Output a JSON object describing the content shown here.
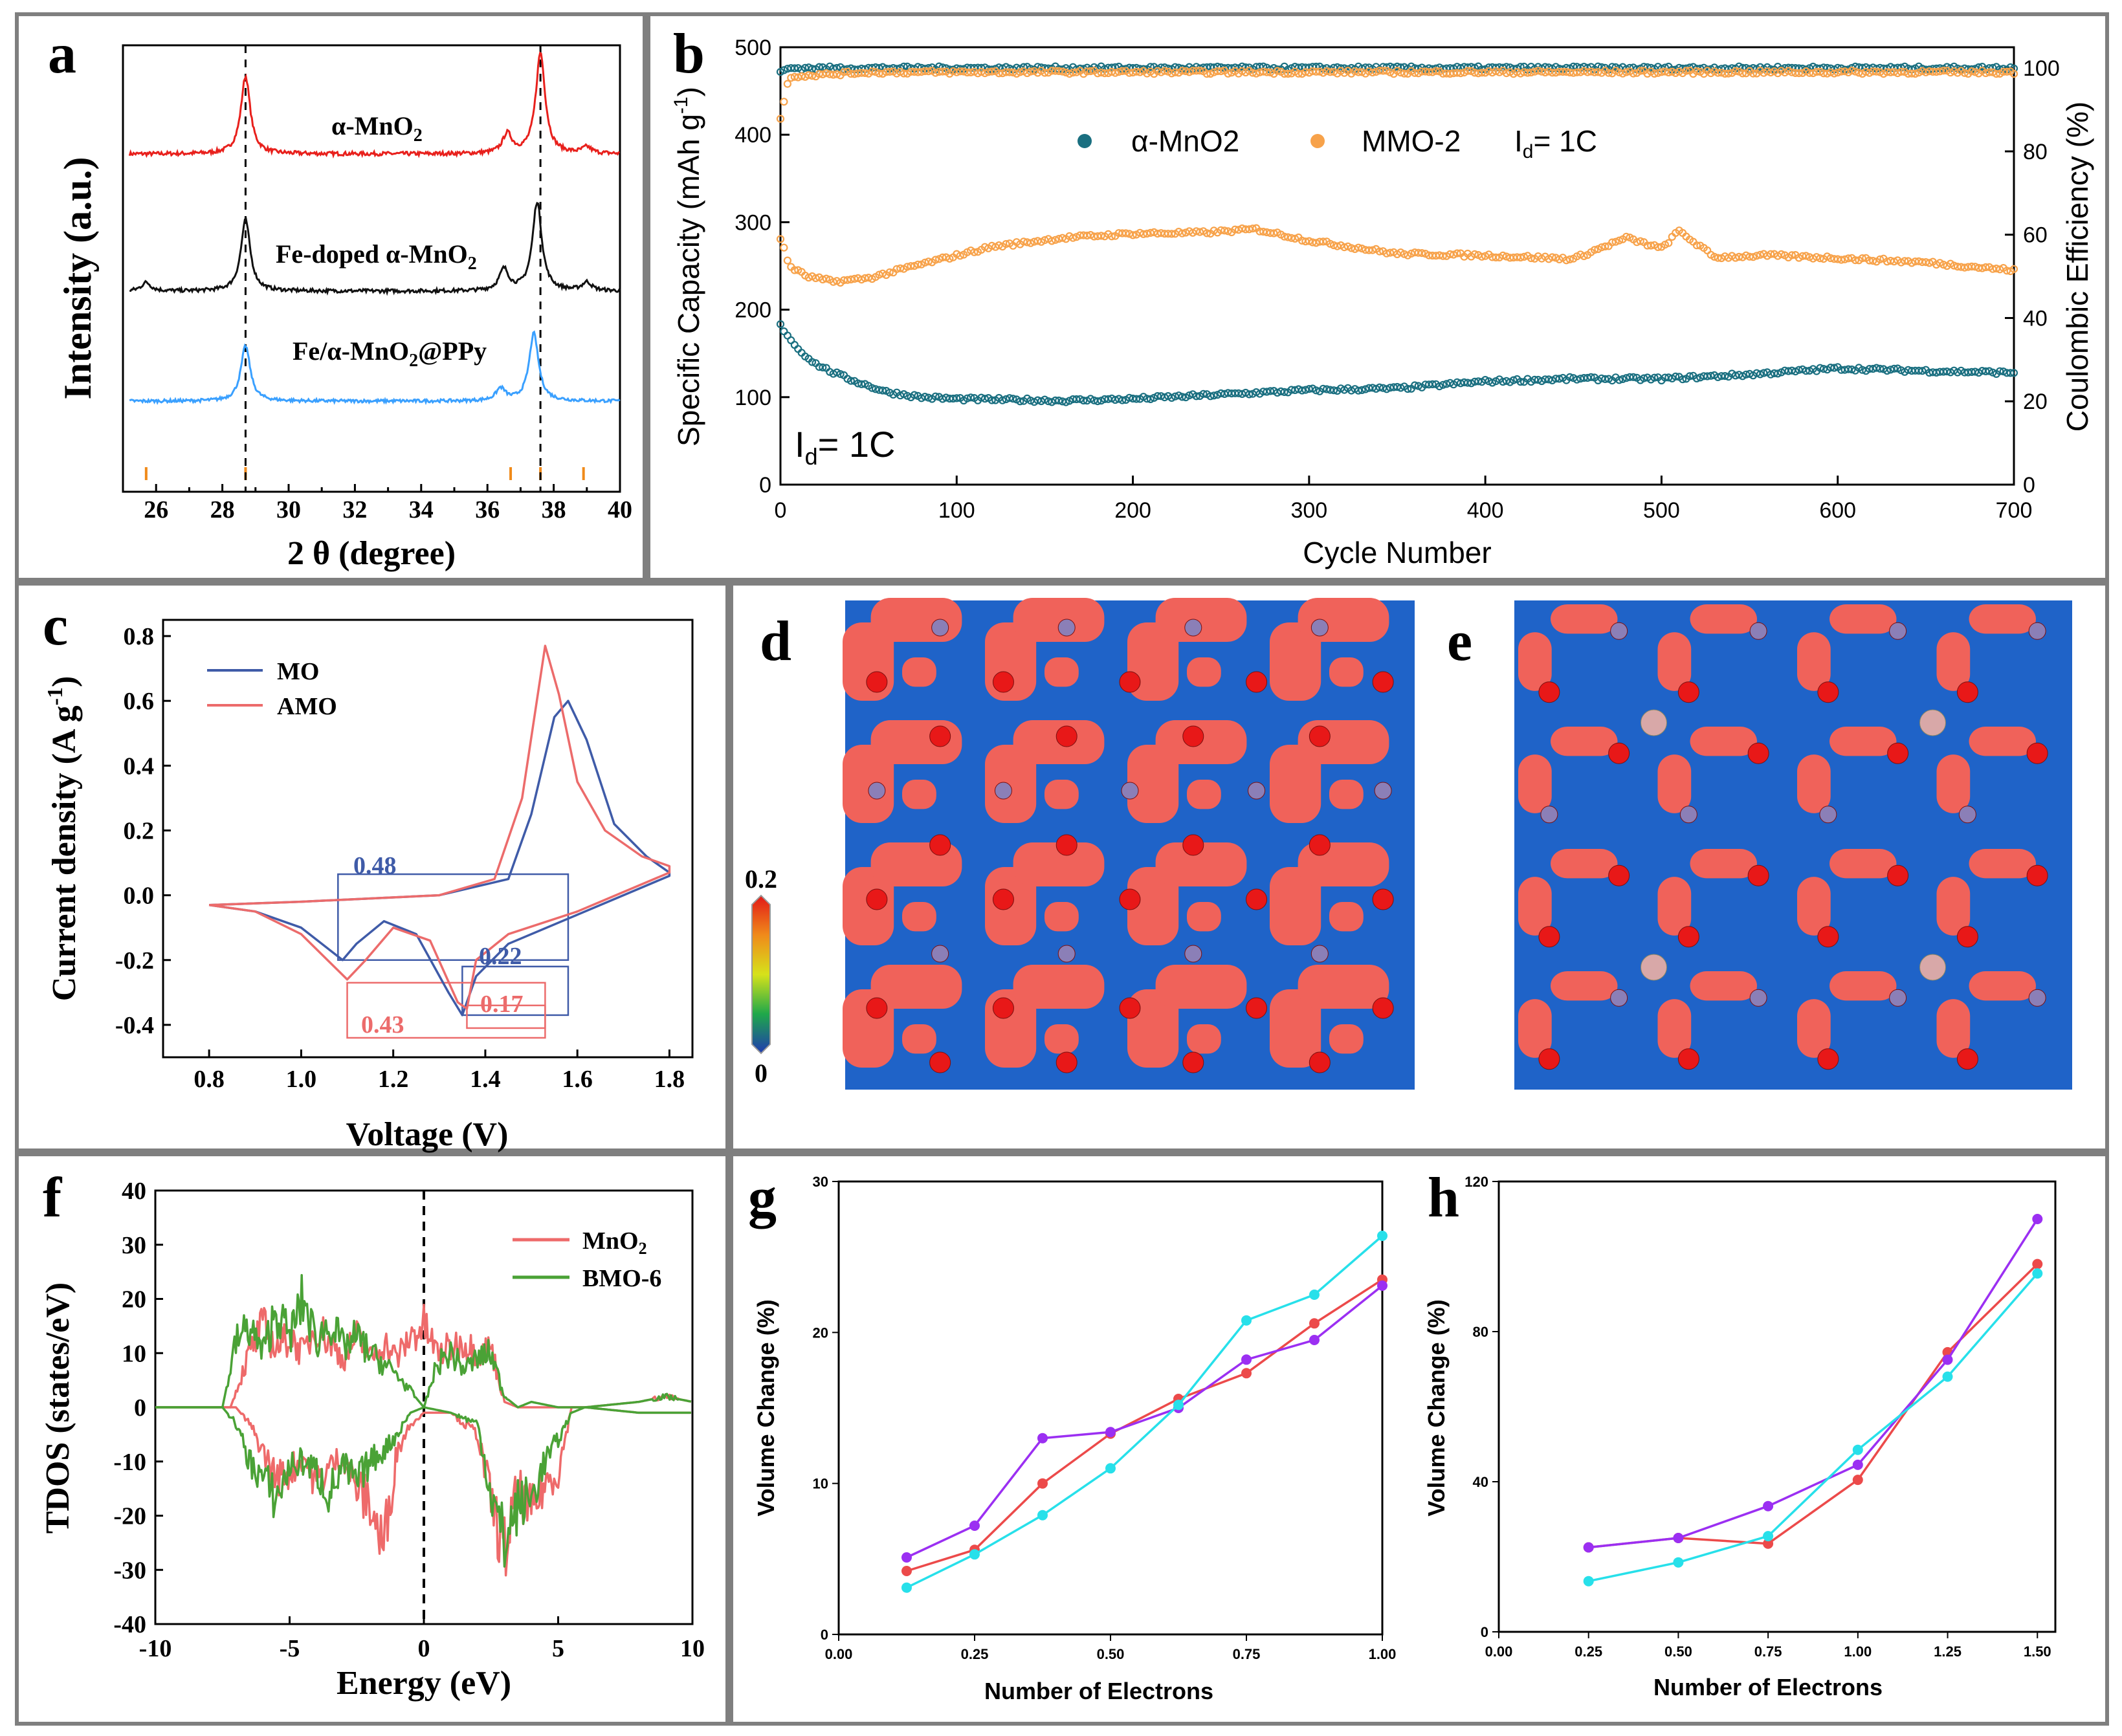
{
  "colors": {
    "red": "#e8201c",
    "black": "#111111",
    "blue": "#3aa0ff",
    "teal": "#1a6f80",
    "orange": "#f7a24a",
    "mo": "#3f5ba8",
    "amo": "#ec6b6b",
    "mno2": "#ee6a6a",
    "bmo": "#4aa236",
    "cyan": "#27e0ea",
    "purple": "#9b2ff2",
    "grid_red": "#ec4a4a",
    "map_red": "#f0625a",
    "map_blue": "#1f63c8",
    "atom_red": "#e81818",
    "atom_purple": "#8b7fb7",
    "atom_pink": "#d8a8a8"
  },
  "chart_data": [
    {
      "panel": "a",
      "type": "line",
      "xlabel": "2 θ (degree)",
      "ylabel": "Intensity (a.u.)",
      "xlim": [
        25,
        40
      ],
      "xticks": [
        26,
        28,
        30,
        32,
        34,
        36,
        38,
        40
      ],
      "dashed_lines_x": [
        28.7,
        37.6
      ],
      "reference_ticks_x": [
        25.7,
        28.7,
        36.7,
        37.6,
        38.9
      ],
      "series": [
        {
          "name": "α-MnO2",
          "label_text": "α-MnO",
          "label_sub": "2",
          "color": "red",
          "baseline": 0.0,
          "peaks": [
            [
              28.7,
              1.0
            ],
            [
              36.6,
              0.25
            ],
            [
              37.6,
              1.3
            ],
            [
              39.0,
              0.08
            ]
          ]
        },
        {
          "name": "Fe-doped α-MnO2",
          "label_text": "Fe-doped α-MnO",
          "label_sub": "2",
          "color": "black",
          "baseline": 0.0,
          "peaks": [
            [
              25.7,
              0.12
            ],
            [
              28.7,
              1.0
            ],
            [
              36.5,
              0.3
            ],
            [
              37.5,
              1.25
            ],
            [
              39.0,
              0.12
            ]
          ]
        },
        {
          "name": "Fe/α-MnO2@PPy",
          "label_text": "Fe/α-MnO",
          "label_sub": "2",
          "label_tail": "@PPy",
          "color": "blue",
          "baseline": 0.0,
          "peaks": [
            [
              28.7,
              0.9
            ],
            [
              36.4,
              0.2
            ],
            [
              37.4,
              1.1
            ]
          ]
        }
      ]
    },
    {
      "panel": "b",
      "type": "scatter",
      "xlabel": "Cycle Number",
      "ylabel_left": "Specific Capacity (mAh g",
      "ylabel_left_sup": "-1",
      "ylabel_left_tail": ")",
      "ylabel_right": "Coulombic Efficiency (%)",
      "xlim": [
        0,
        700
      ],
      "ylim_left": [
        0,
        500
      ],
      "ylim_right": [
        0,
        105
      ],
      "xticks": [
        0,
        100,
        200,
        300,
        400,
        500,
        600,
        700
      ],
      "yticks_left": [
        0,
        100,
        200,
        300,
        400,
        500
      ],
      "yticks_right": [
        0,
        20,
        40,
        60,
        80,
        100
      ],
      "legend": [
        {
          "name": "α-MnO2",
          "color": "teal"
        },
        {
          "name": "MMO-2",
          "color": "orange"
        },
        {
          "name": "I",
          "sub": "d",
          "tail": "= 1C"
        }
      ],
      "annotation": {
        "text": "I",
        "sub": "d",
        "tail": "= 1C"
      },
      "series": [
        {
          "name": "α-MnO2 capacity",
          "axis": "left",
          "color": "teal",
          "x": [
            0,
            10,
            20,
            30,
            40,
            60,
            80,
            100,
            130,
            160,
            200,
            250,
            300,
            350,
            400,
            450,
            500,
            550,
            600,
            650,
            700
          ],
          "y": [
            182,
            155,
            138,
            128,
            120,
            106,
            100,
            98,
            97,
            96,
            98,
            103,
            108,
            110,
            118,
            121,
            121,
            126,
            133,
            130,
            128
          ]
        },
        {
          "name": "MMO-2 capacity",
          "axis": "left",
          "color": "orange",
          "x": [
            0,
            5,
            15,
            30,
            50,
            80,
            120,
            160,
            200,
            240,
            270,
            300,
            350,
            400,
            450,
            480,
            500,
            510,
            530,
            560,
            600,
            650,
            700
          ],
          "y": [
            282,
            250,
            238,
            232,
            236,
            252,
            272,
            282,
            287,
            288,
            292,
            279,
            264,
            262,
            258,
            282,
            270,
            290,
            260,
            262,
            259,
            254,
            245
          ]
        },
        {
          "name": "α-MnO2 CE",
          "axis": "right",
          "color": "teal",
          "x": [
            0,
            5,
            50,
            100,
            200,
            300,
            400,
            500,
            600,
            700
          ],
          "y": [
            99,
            100,
            100,
            100,
            100,
            100,
            100,
            100,
            100,
            100
          ]
        },
        {
          "name": "MMO-2 CE",
          "axis": "right",
          "color": "orange",
          "x": [
            0,
            5,
            50,
            100,
            200,
            300,
            400,
            500,
            600,
            700
          ],
          "y": [
            88,
            98,
            99,
            99,
            99,
            99,
            99,
            99,
            99,
            99
          ]
        }
      ]
    },
    {
      "panel": "c",
      "type": "line",
      "xlabel": "Voltage (V)",
      "ylabel": "Current density (A g",
      "ylabel_sup": "-1",
      "ylabel_tail": ")",
      "xlim": [
        0.7,
        1.85
      ],
      "ylim": [
        -0.5,
        0.85
      ],
      "xticks": [
        0.8,
        1.0,
        1.2,
        1.4,
        1.6,
        1.8
      ],
      "yticks": [
        -0.4,
        -0.2,
        0.0,
        0.2,
        0.4,
        0.6,
        0.8
      ],
      "legend": [
        "MO",
        "AMO"
      ],
      "annotations": [
        {
          "text": "0.48",
          "color": "mo"
        },
        {
          "text": "0.22",
          "color": "mo"
        },
        {
          "text": "0.43",
          "color": "amo"
        },
        {
          "text": "0.17",
          "color": "amo"
        }
      ],
      "series": [
        {
          "name": "MO",
          "color": "mo",
          "upper": [
            [
              0.8,
              -0.03
            ],
            [
              1.0,
              -0.02
            ],
            [
              1.3,
              0.0
            ],
            [
              1.45,
              0.05
            ],
            [
              1.5,
              0.25
            ],
            [
              1.55,
              0.55
            ],
            [
              1.58,
              0.6
            ],
            [
              1.62,
              0.48
            ],
            [
              1.68,
              0.22
            ],
            [
              1.75,
              0.12
            ],
            [
              1.8,
              0.07
            ]
          ],
          "lower": [
            [
              1.8,
              0.06
            ],
            [
              1.6,
              -0.06
            ],
            [
              1.45,
              -0.15
            ],
            [
              1.38,
              -0.25
            ],
            [
              1.35,
              -0.37
            ],
            [
              1.32,
              -0.3
            ],
            [
              1.25,
              -0.12
            ],
            [
              1.18,
              -0.08
            ],
            [
              1.12,
              -0.15
            ],
            [
              1.09,
              -0.2
            ],
            [
              1.0,
              -0.1
            ],
            [
              0.9,
              -0.05
            ],
            [
              0.8,
              -0.03
            ]
          ]
        },
        {
          "name": "AMO",
          "color": "amo",
          "upper": [
            [
              0.8,
              -0.03
            ],
            [
              1.0,
              -0.02
            ],
            [
              1.3,
              0.0
            ],
            [
              1.42,
              0.05
            ],
            [
              1.48,
              0.3
            ],
            [
              1.53,
              0.77
            ],
            [
              1.56,
              0.62
            ],
            [
              1.6,
              0.35
            ],
            [
              1.66,
              0.2
            ],
            [
              1.74,
              0.12
            ],
            [
              1.8,
              0.09
            ]
          ],
          "lower": [
            [
              1.8,
              0.07
            ],
            [
              1.6,
              -0.05
            ],
            [
              1.45,
              -0.12
            ],
            [
              1.38,
              -0.2
            ],
            [
              1.36,
              -0.35
            ],
            [
              1.34,
              -0.33
            ],
            [
              1.28,
              -0.14
            ],
            [
              1.2,
              -0.1
            ],
            [
              1.14,
              -0.2
            ],
            [
              1.1,
              -0.26
            ],
            [
              1.0,
              -0.12
            ],
            [
              0.9,
              -0.05
            ],
            [
              0.8,
              -0.03
            ]
          ]
        }
      ]
    },
    {
      "panel": "d",
      "type": "heatmap",
      "colorbar_max": "0.2",
      "colorbar_min": "0"
    },
    {
      "panel": "e",
      "type": "heatmap"
    },
    {
      "panel": "f",
      "type": "line",
      "xlabel": "Energy (eV)",
      "ylabel": "TDOS (states/eV)",
      "xlim": [
        -10,
        10
      ],
      "ylim": [
        -40,
        40
      ],
      "xticks": [
        -10,
        -5,
        0,
        5,
        10
      ],
      "yticks": [
        -40,
        -30,
        -20,
        -10,
        0,
        10,
        20,
        30,
        40
      ],
      "fermi_level": 0,
      "legend": [
        {
          "name": "MnO2",
          "text": "MnO",
          "sub": "2",
          "color": "mno2"
        },
        {
          "name": "BMO-6",
          "text": "BMO-6",
          "color": "bmo"
        }
      ],
      "series": [
        {
          "name": "MnO2 spin up",
          "color": "mno2",
          "x": [
            -10,
            -8,
            -7.2,
            -6.5,
            -6,
            -5.5,
            -5,
            -4.5,
            -4,
            -3.5,
            -3,
            -2.5,
            -2,
            -1.5,
            -1,
            -0.5,
            0,
            0.5,
            1,
            1.5,
            2,
            2.5,
            3,
            3.5,
            4,
            5,
            6,
            7,
            8,
            9,
            10
          ],
          "y": [
            0,
            0,
            0,
            10,
            15,
            11,
            13,
            10,
            15,
            12,
            9,
            13,
            9,
            12,
            9,
            13,
            15,
            10,
            11,
            12,
            10,
            11,
            1,
            0,
            0,
            0,
            0,
            0.5,
            1,
            2,
            1
          ]
        },
        {
          "name": "MnO2 spin down",
          "color": "mno2",
          "x": [
            -10,
            -8,
            -7,
            -6.5,
            -6,
            -5.5,
            -5,
            -4.5,
            -4,
            -3.5,
            -3,
            -2.5,
            -2,
            -1.5,
            -1,
            -0.5,
            0,
            1,
            2,
            2.5,
            3,
            3.5,
            4,
            4.5,
            5,
            5.5,
            6,
            8,
            10
          ],
          "y": [
            0,
            0,
            0,
            -3,
            -8,
            -13,
            -12,
            -9,
            -14,
            -11,
            -9,
            -15,
            -18,
            -26,
            -8,
            -3,
            -1,
            -1,
            -5,
            -17,
            -27,
            -15,
            -20,
            -14,
            -12,
            0,
            0,
            -1,
            -1
          ]
        },
        {
          "name": "BMO-6 spin up",
          "color": "bmo",
          "x": [
            -10,
            -8,
            -7.5,
            -7,
            -6.5,
            -6,
            -5.5,
            -5,
            -4.5,
            -4,
            -3.5,
            -3,
            -2.5,
            -2,
            -1.5,
            -1,
            -0.5,
            0,
            0.5,
            1,
            1.5,
            2,
            2.5,
            3,
            3.5,
            4,
            4.5,
            5,
            6,
            7,
            8,
            9,
            10
          ],
          "y": [
            0,
            0,
            0,
            12,
            15,
            10,
            18,
            13,
            20,
            12,
            16,
            11,
            13,
            10,
            8,
            6,
            3,
            0,
            8,
            10,
            7,
            9,
            10,
            2,
            0,
            1,
            0.5,
            0,
            0,
            0.5,
            1,
            2,
            1
          ]
        },
        {
          "name": "BMO-6 spin down",
          "color": "bmo",
          "x": [
            -10,
            -8,
            -7.5,
            -7,
            -6.5,
            -6,
            -5.5,
            -5,
            -4.5,
            -4,
            -3.5,
            -3,
            -2.5,
            -2,
            -1.5,
            -1,
            -0.5,
            0,
            1,
            2,
            2.5,
            3,
            3.5,
            4,
            4.5,
            5,
            5.5,
            6,
            8,
            10
          ],
          "y": [
            0,
            0,
            0,
            -3,
            -10,
            -13,
            -17,
            -11,
            -10,
            -12,
            -16,
            -11,
            -14,
            -10,
            -8,
            -5,
            -1,
            0,
            -1,
            -3,
            -16,
            -25,
            -18,
            -17,
            -10,
            -6,
            -1,
            0,
            -1,
            -1
          ]
        }
      ]
    },
    {
      "panel": "g",
      "type": "line",
      "xlabel": "Number of Electrons",
      "ylabel": "Volume Change (%)",
      "xlim": [
        0.0,
        1.0
      ],
      "ylim": [
        0,
        30
      ],
      "xticks": [
        "0.00",
        "0.25",
        "0.50",
        "0.75",
        "1.00"
      ],
      "yticks": [
        0,
        10,
        20,
        30
      ],
      "series": [
        {
          "name": "red",
          "color": "grid_red",
          "x": [
            0.125,
            0.25,
            0.375,
            0.5,
            0.625,
            0.75,
            0.875,
            1.0
          ],
          "y": [
            4.2,
            5.6,
            10.0,
            13.3,
            15.6,
            17.3,
            20.6,
            23.5
          ]
        },
        {
          "name": "purple",
          "color": "purple",
          "x": [
            0.125,
            0.25,
            0.375,
            0.5,
            0.625,
            0.75,
            0.875,
            1.0
          ],
          "y": [
            5.1,
            7.2,
            13.0,
            13.4,
            15.0,
            18.2,
            19.5,
            23.1
          ]
        },
        {
          "name": "cyan",
          "color": "cyan",
          "x": [
            0.125,
            0.25,
            0.375,
            0.5,
            0.625,
            0.75,
            0.875,
            1.0
          ],
          "y": [
            3.1,
            5.3,
            7.9,
            11.0,
            15.2,
            20.8,
            22.5,
            26.4
          ]
        }
      ]
    },
    {
      "panel": "h",
      "type": "line",
      "xlabel": "Number of Electrons",
      "ylabel": "Volume Change (%)",
      "xlim": [
        0.0,
        1.55
      ],
      "ylim": [
        0,
        120
      ],
      "xticks": [
        "0.00",
        "0.25",
        "0.50",
        "0.75",
        "1.00",
        "1.25",
        "1.50"
      ],
      "yticks": [
        0,
        40,
        80,
        120
      ],
      "series": [
        {
          "name": "red",
          "color": "grid_red",
          "x": [
            0.25,
            0.5,
            0.75,
            1.0,
            1.25,
            1.5
          ],
          "y": [
            22.5,
            25.0,
            23.5,
            40.5,
            74.5,
            98.0
          ]
        },
        {
          "name": "purple",
          "color": "purple",
          "x": [
            0.25,
            0.5,
            0.75,
            1.0,
            1.25,
            1.5
          ],
          "y": [
            22.5,
            25.0,
            33.5,
            44.5,
            72.5,
            110.0
          ]
        },
        {
          "name": "cyan",
          "color": "cyan",
          "x": [
            0.25,
            0.5,
            0.75,
            1.0,
            1.25,
            1.5
          ],
          "y": [
            13.5,
            18.5,
            25.5,
            48.5,
            68.0,
            95.5
          ]
        }
      ]
    }
  ]
}
